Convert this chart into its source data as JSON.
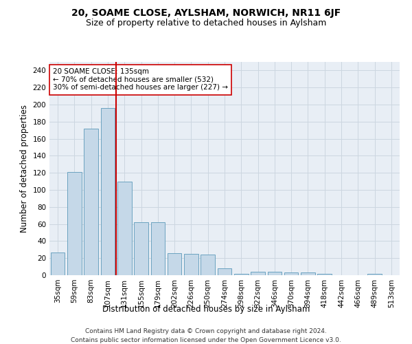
{
  "title": "20, SOAME CLOSE, AYLSHAM, NORWICH, NR11 6JF",
  "subtitle": "Size of property relative to detached houses in Aylsham",
  "xlabel": "Distribution of detached houses by size in Aylsham",
  "ylabel": "Number of detached properties",
  "bar_color": "#c5d8e8",
  "bar_edge_color": "#6ba3c0",
  "categories": [
    "35sqm",
    "59sqm",
    "83sqm",
    "107sqm",
    "131sqm",
    "155sqm",
    "179sqm",
    "202sqm",
    "226sqm",
    "250sqm",
    "274sqm",
    "298sqm",
    "322sqm",
    "346sqm",
    "370sqm",
    "394sqm",
    "418sqm",
    "442sqm",
    "466sqm",
    "489sqm",
    "513sqm"
  ],
  "values": [
    27,
    121,
    172,
    196,
    110,
    62,
    62,
    26,
    25,
    24,
    8,
    2,
    4,
    4,
    3,
    3,
    2,
    0,
    0,
    2,
    0
  ],
  "vline_x_idx": 4,
  "vline_color": "#cc0000",
  "annotation_line1": "20 SOAME CLOSE: 135sqm",
  "annotation_line2": "← 70% of detached houses are smaller (532)",
  "annotation_line3": "30% of semi-detached houses are larger (227) →",
  "annotation_box_facecolor": "#ffffff",
  "annotation_box_edgecolor": "#cc0000",
  "ylim": [
    0,
    250
  ],
  "yticks": [
    0,
    20,
    40,
    60,
    80,
    100,
    120,
    140,
    160,
    180,
    200,
    220,
    240
  ],
  "grid_color": "#ccd6e0",
  "bg_color": "#e8eef5",
  "footnote_line1": "Contains HM Land Registry data © Crown copyright and database right 2024.",
  "footnote_line2": "Contains public sector information licensed under the Open Government Licence v3.0.",
  "title_fontsize": 10,
  "subtitle_fontsize": 9,
  "xlabel_fontsize": 8.5,
  "ylabel_fontsize": 8.5,
  "tick_fontsize": 7.5,
  "annotation_fontsize": 7.5,
  "footnote_fontsize": 6.5
}
